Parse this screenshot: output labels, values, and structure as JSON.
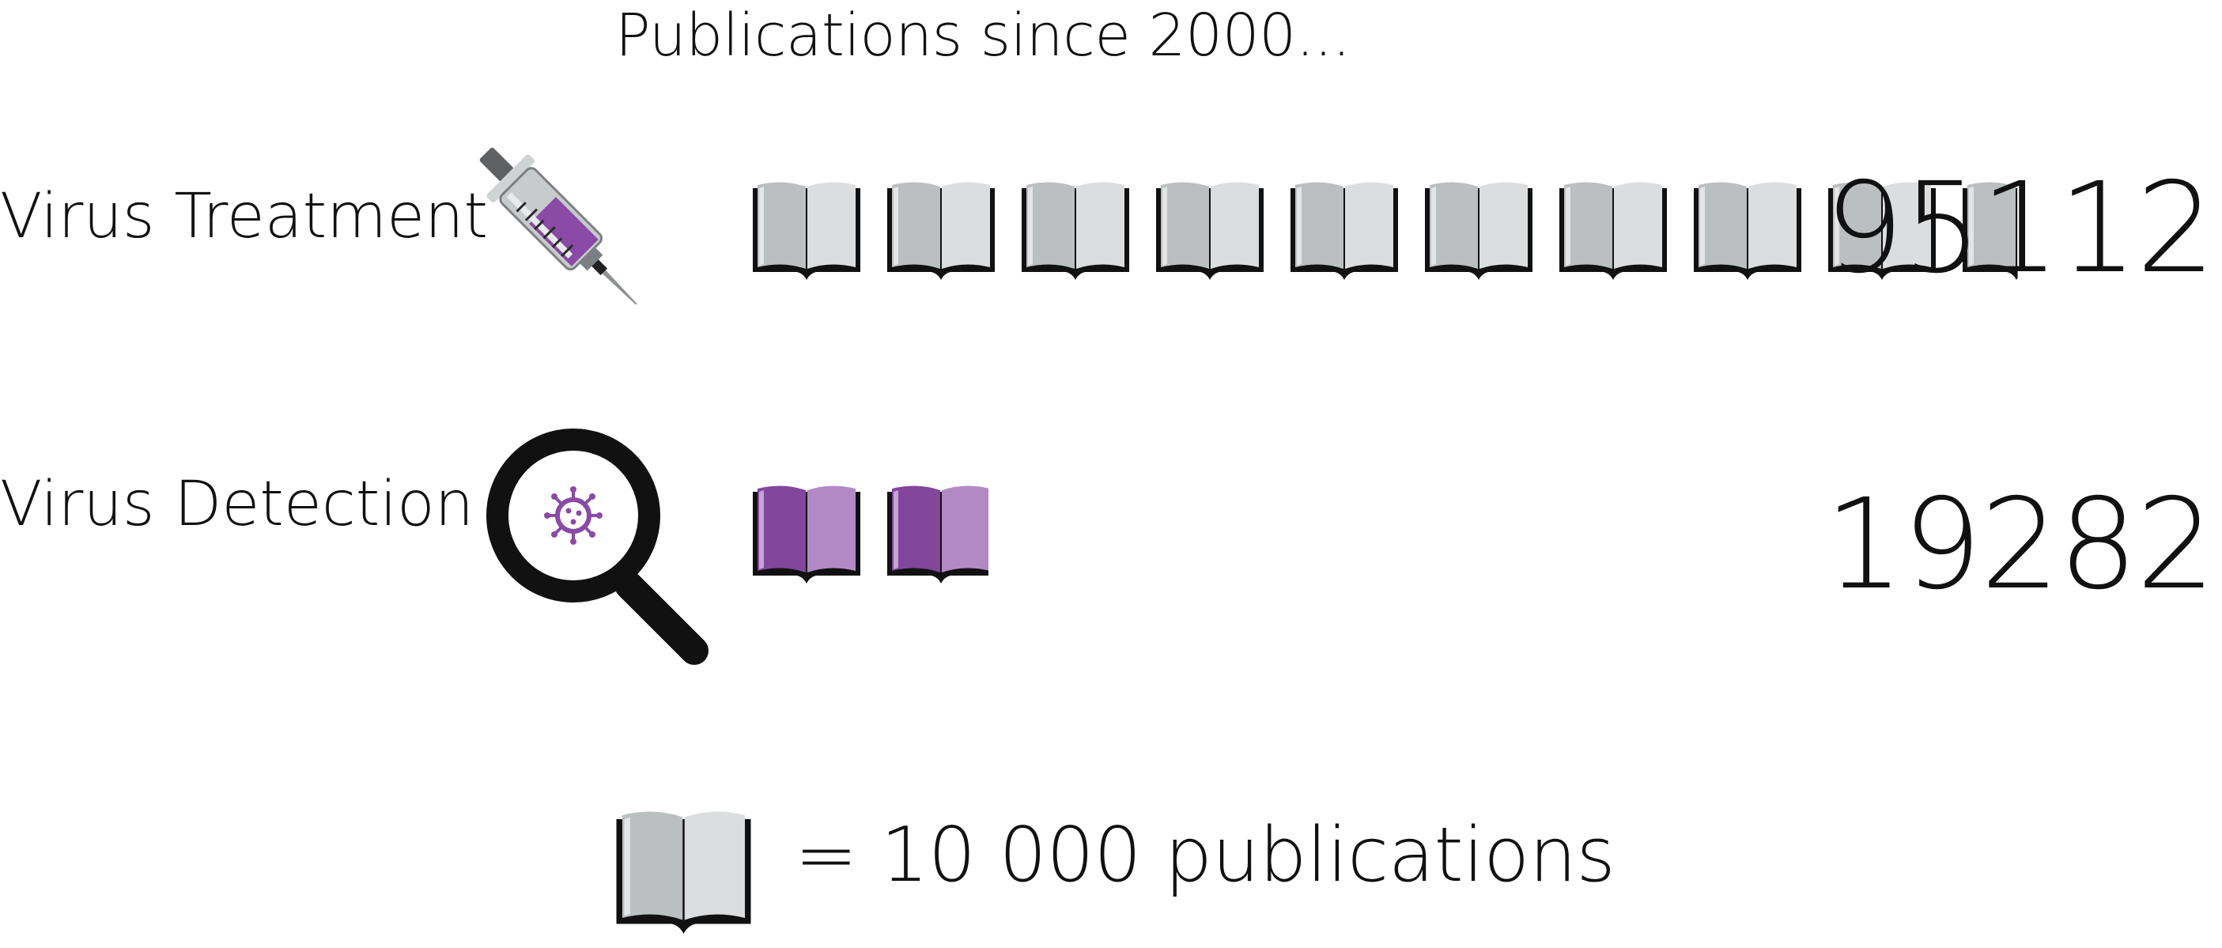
{
  "chart_data": {
    "type": "pictograph",
    "title": "Publications since 2000...",
    "unit_value": 10000,
    "categories": [
      "Virus Treatment",
      "Virus Detection"
    ],
    "values": [
      95112,
      19282
    ],
    "value_labels": [
      "95112",
      "19282"
    ],
    "category_icons": [
      "syringe-icon",
      "magnifier-virus-icon"
    ],
    "book_colors": [
      "#c8cbcc",
      "#8a4aa6"
    ],
    "legend": {
      "symbol": "book-icon",
      "text": "= 10 000 publications"
    }
  }
}
